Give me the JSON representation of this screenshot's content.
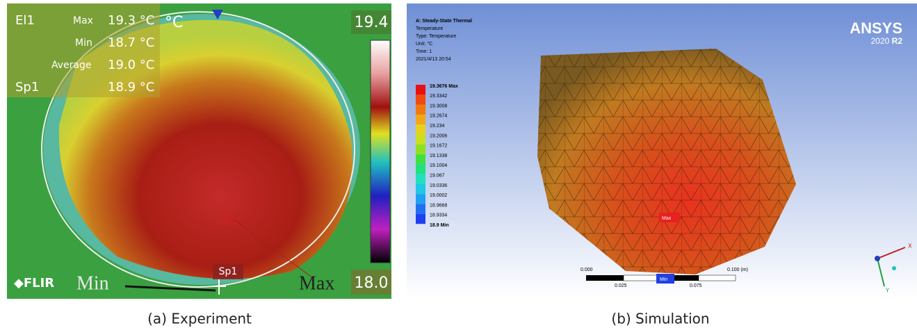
{
  "experiment": {
    "caption": "(a) Experiment",
    "region": "El1",
    "max_label": "Max",
    "max": "19.3 °C",
    "unit": "°C",
    "min_label": "Min",
    "min": "18.7 °C",
    "average_label": "Average",
    "average": "19.0 °C",
    "spot": "Sp1",
    "spot_value": "18.9 °C",
    "scale_top": "19.4",
    "scale_bottom": "18.0",
    "brand": "FLIR",
    "range_min": "Min",
    "range_max": "Max",
    "spot_marker": "Sp1"
  },
  "simulation": {
    "caption": "(b) Simulation",
    "header": [
      "A: Steady-State Thermal",
      "Temperature",
      "Type: Temperature",
      "Unit: °C",
      "Time: 1",
      "2021/4/13 20:54"
    ],
    "legend": [
      "19.3676 Max",
      "19.3342",
      "19.3008",
      "19.2674",
      "19.234",
      "19.2006",
      "19.1672",
      "19.1338",
      "19.1004",
      "19.067",
      "19.0336",
      "19.0002",
      "18.9668",
      "18.9334",
      "18.9 Min"
    ],
    "brand": "ANSYS",
    "version": "2020",
    "release": "R2",
    "max_tag": "Max",
    "min_tag": "Min",
    "scale_top": [
      "0.000",
      "0.100 (m)"
    ],
    "scale_bottom": [
      "0.025",
      "0.075"
    ],
    "axes": [
      "X",
      "Y"
    ]
  }
}
